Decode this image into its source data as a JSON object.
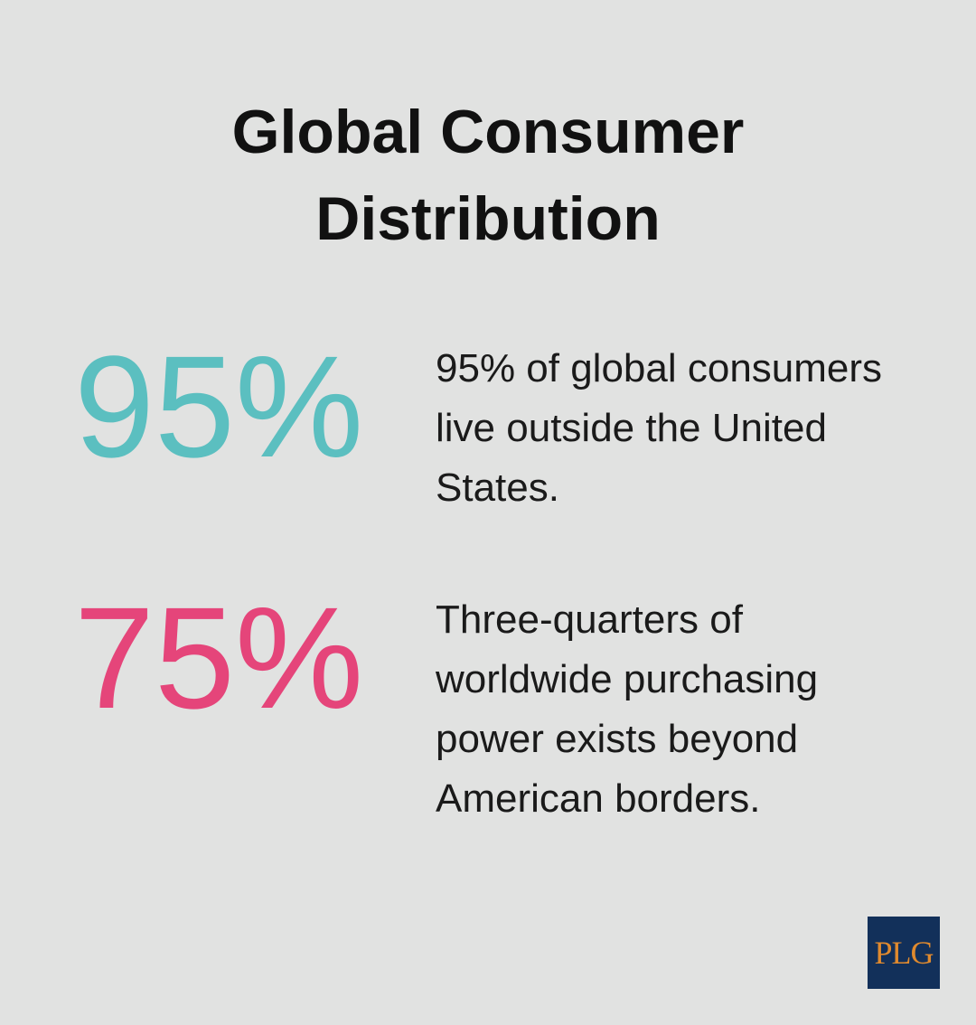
{
  "header": {
    "title": "Global Consumer Distribution"
  },
  "stats": [
    {
      "value": "95%",
      "text": "95% of global consumers live outside the United States.",
      "color": "#5bbfc0"
    },
    {
      "value": "75%",
      "text": "Three-quarters of worldwide purchasing power exists beyond American borders.",
      "color": "#e5457a"
    }
  ],
  "logo": {
    "text": "PLG"
  }
}
